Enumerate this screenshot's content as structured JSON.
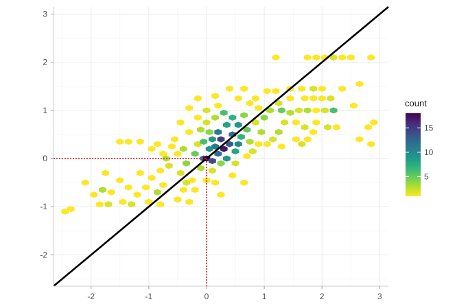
{
  "chart_data": {
    "type": "hexbin",
    "xlim": [
      -2.65,
      3.15
    ],
    "ylim": [
      -2.65,
      3.15
    ],
    "x_ticks": [
      -2,
      -1,
      0,
      1,
      2,
      3
    ],
    "y_ticks": [
      -2,
      -1,
      0,
      1,
      2,
      3
    ],
    "grid": true,
    "xlabel": "",
    "ylabel": "",
    "reference_line": {
      "intercept": 0,
      "slope": 1,
      "color": "#000000"
    },
    "crosshair": {
      "x": 0,
      "y": 0,
      "color": "#e41a1c",
      "style": "dotted"
    },
    "legend": {
      "title": "count",
      "placement": "right",
      "ticks": [
        5,
        10,
        15
      ],
      "range": [
        1,
        18
      ],
      "colormap": "viridis"
    },
    "bins": [
      {
        "x": -2.45,
        "y": -1.1,
        "count": 1
      },
      {
        "x": -2.35,
        "y": -1.05,
        "count": 1
      },
      {
        "x": -2.1,
        "y": -0.5,
        "count": 1
      },
      {
        "x": -1.95,
        "y": -0.75,
        "count": 1
      },
      {
        "x": -1.85,
        "y": -0.95,
        "count": 1
      },
      {
        "x": -1.8,
        "y": -0.65,
        "count": 3
      },
      {
        "x": -1.7,
        "y": -0.95,
        "count": 2
      },
      {
        "x": -1.65,
        "y": -0.7,
        "count": 1
      },
      {
        "x": -1.75,
        "y": -0.3,
        "count": 1
      },
      {
        "x": -1.5,
        "y": -0.45,
        "count": 1
      },
      {
        "x": -1.45,
        "y": -0.9,
        "count": 1
      },
      {
        "x": -1.35,
        "y": -0.6,
        "count": 1
      },
      {
        "x": -1.3,
        "y": -0.95,
        "count": 2
      },
      {
        "x": -1.2,
        "y": -0.75,
        "count": 1
      },
      {
        "x": -1.15,
        "y": -0.3,
        "count": 1
      },
      {
        "x": -1.05,
        "y": -0.6,
        "count": 1
      },
      {
        "x": -1.0,
        "y": -0.9,
        "count": 1
      },
      {
        "x": -0.95,
        "y": -0.4,
        "count": 1
      },
      {
        "x": -0.85,
        "y": -0.7,
        "count": 3
      },
      {
        "x": -0.8,
        "y": -0.25,
        "count": 1
      },
      {
        "x": -0.75,
        "y": -0.55,
        "count": 1
      },
      {
        "x": -0.8,
        "y": -0.95,
        "count": 1
      },
      {
        "x": -1.5,
        "y": 0.35,
        "count": 1
      },
      {
        "x": -1.35,
        "y": 0.35,
        "count": 1
      },
      {
        "x": -1.15,
        "y": 0.35,
        "count": 1
      },
      {
        "x": -0.95,
        "y": 0.2,
        "count": 1
      },
      {
        "x": -0.85,
        "y": 0.3,
        "count": 1
      },
      {
        "x": -0.75,
        "y": 0.1,
        "count": 1
      },
      {
        "x": -0.7,
        "y": 0.0,
        "count": 3
      },
      {
        "x": -0.65,
        "y": -0.15,
        "count": 2
      },
      {
        "x": -0.6,
        "y": 0.25,
        "count": 1
      },
      {
        "x": -0.55,
        "y": 0.4,
        "count": 1
      },
      {
        "x": -0.5,
        "y": 0.1,
        "count": 1
      },
      {
        "x": -0.45,
        "y": -0.3,
        "count": 2
      },
      {
        "x": -0.4,
        "y": 0.2,
        "count": 3
      },
      {
        "x": -0.35,
        "y": -0.1,
        "count": 4
      },
      {
        "x": -0.3,
        "y": 0.55,
        "count": 1
      },
      {
        "x": -0.25,
        "y": -0.45,
        "count": 1
      },
      {
        "x": -0.2,
        "y": 0.1,
        "count": 5
      },
      {
        "x": -0.15,
        "y": 0.3,
        "count": 2
      },
      {
        "x": -0.1,
        "y": -0.2,
        "count": 3
      },
      {
        "x": -0.05,
        "y": 0.0,
        "count": 12
      },
      {
        "x": 0.0,
        "y": 0.0,
        "count": 18
      },
      {
        "x": 0.05,
        "y": 0.2,
        "count": 9
      },
      {
        "x": 0.1,
        "y": -0.05,
        "count": 14
      },
      {
        "x": 0.15,
        "y": 0.25,
        "count": 11
      },
      {
        "x": -0.5,
        "y": -0.85,
        "count": 1
      },
      {
        "x": -0.4,
        "y": -0.65,
        "count": 1
      },
      {
        "x": -0.3,
        "y": -0.9,
        "count": 1
      },
      {
        "x": -0.2,
        "y": -0.65,
        "count": 1
      },
      {
        "x": -0.35,
        "y": -0.5,
        "count": 2
      },
      {
        "x": 0.0,
        "y": -0.45,
        "count": 1
      },
      {
        "x": 0.1,
        "y": -0.25,
        "count": 2
      },
      {
        "x": 0.15,
        "y": -0.5,
        "count": 1
      },
      {
        "x": 0.25,
        "y": -0.75,
        "count": 1
      },
      {
        "x": 0.45,
        "y": -0.35,
        "count": 1
      },
      {
        "x": 0.65,
        "y": -0.5,
        "count": 1
      },
      {
        "x": 0.5,
        "y": -0.1,
        "count": 2
      },
      {
        "x": 0.25,
        "y": -0.1,
        "count": 4
      },
      {
        "x": 0.35,
        "y": 0.0,
        "count": 9
      },
      {
        "x": 0.2,
        "y": 0.1,
        "count": 12
      },
      {
        "x": 0.3,
        "y": 0.2,
        "count": 17
      },
      {
        "x": 0.4,
        "y": 0.3,
        "count": 13
      },
      {
        "x": 0.25,
        "y": 0.4,
        "count": 15
      },
      {
        "x": 0.45,
        "y": 0.5,
        "count": 12
      },
      {
        "x": 0.55,
        "y": 0.3,
        "count": 10
      },
      {
        "x": 0.5,
        "y": 0.15,
        "count": 8
      },
      {
        "x": 0.6,
        "y": 0.45,
        "count": 7
      },
      {
        "x": 0.7,
        "y": 0.6,
        "count": 5
      },
      {
        "x": 0.35,
        "y": 0.7,
        "count": 8
      },
      {
        "x": 0.2,
        "y": 0.55,
        "count": 11
      },
      {
        "x": 0.1,
        "y": 0.4,
        "count": 9
      },
      {
        "x": 0.05,
        "y": 0.55,
        "count": 4
      },
      {
        "x": -0.05,
        "y": 0.35,
        "count": 6
      },
      {
        "x": -0.1,
        "y": 0.6,
        "count": 3
      },
      {
        "x": 0.0,
        "y": 0.75,
        "count": 2
      },
      {
        "x": 0.15,
        "y": 0.85,
        "count": 3
      },
      {
        "x": 0.3,
        "y": 0.95,
        "count": 6
      },
      {
        "x": 0.45,
        "y": 0.85,
        "count": 7
      },
      {
        "x": 0.55,
        "y": 0.7,
        "count": 9
      },
      {
        "x": 0.65,
        "y": 0.9,
        "count": 4
      },
      {
        "x": 0.75,
        "y": 0.35,
        "count": 3
      },
      {
        "x": 0.8,
        "y": 0.15,
        "count": 2
      },
      {
        "x": 0.7,
        "y": 0.05,
        "count": 1
      },
      {
        "x": 0.9,
        "y": 0.3,
        "count": 1
      },
      {
        "x": 0.95,
        "y": 0.55,
        "count": 3
      },
      {
        "x": 0.85,
        "y": 0.75,
        "count": 2
      },
      {
        "x": 1.0,
        "y": 0.85,
        "count": 4
      },
      {
        "x": 1.05,
        "y": 0.3,
        "count": 1
      },
      {
        "x": 1.15,
        "y": 0.4,
        "count": 2
      },
      {
        "x": 1.25,
        "y": 0.55,
        "count": 3
      },
      {
        "x": 1.35,
        "y": 0.75,
        "count": 2
      },
      {
        "x": 1.45,
        "y": 0.95,
        "count": 3
      },
      {
        "x": 1.3,
        "y": 0.25,
        "count": 1
      },
      {
        "x": 1.55,
        "y": 0.4,
        "count": 1
      },
      {
        "x": 1.65,
        "y": 0.3,
        "count": 2
      },
      {
        "x": 1.75,
        "y": 0.4,
        "count": 1
      },
      {
        "x": 1.85,
        "y": 0.55,
        "count": 1
      },
      {
        "x": 1.55,
        "y": 0.75,
        "count": 1
      },
      {
        "x": 1.7,
        "y": 0.65,
        "count": 2
      },
      {
        "x": 1.9,
        "y": 0.75,
        "count": 1
      },
      {
        "x": 2.1,
        "y": 0.65,
        "count": 2
      },
      {
        "x": 2.25,
        "y": 0.65,
        "count": 1
      },
      {
        "x": 1.6,
        "y": 1.0,
        "count": 2
      },
      {
        "x": 1.75,
        "y": 1.0,
        "count": 3
      },
      {
        "x": 1.9,
        "y": 1.0,
        "count": 1
      },
      {
        "x": 2.05,
        "y": 1.0,
        "count": 2
      },
      {
        "x": 2.2,
        "y": 1.0,
        "count": 6
      },
      {
        "x": 2.0,
        "y": 1.25,
        "count": 1
      },
      {
        "x": 2.15,
        "y": 1.25,
        "count": 2
      },
      {
        "x": 1.85,
        "y": 1.25,
        "count": 1
      },
      {
        "x": 1.7,
        "y": 1.25,
        "count": 1
      },
      {
        "x": 1.45,
        "y": 1.25,
        "count": 1
      },
      {
        "x": 1.25,
        "y": 1.15,
        "count": 2
      },
      {
        "x": 1.1,
        "y": 1.0,
        "count": 3
      },
      {
        "x": 1.3,
        "y": 1.0,
        "count": 5
      },
      {
        "x": 1.2,
        "y": 1.4,
        "count": 1
      },
      {
        "x": 1.05,
        "y": 1.4,
        "count": 1
      },
      {
        "x": 1.45,
        "y": 1.45,
        "count": 1
      },
      {
        "x": 1.65,
        "y": 1.45,
        "count": 1
      },
      {
        "x": 1.85,
        "y": 1.45,
        "count": 2
      },
      {
        "x": 2.0,
        "y": 1.45,
        "count": 1
      },
      {
        "x": 2.35,
        "y": 1.45,
        "count": 1
      },
      {
        "x": 2.65,
        "y": 1.55,
        "count": 1
      },
      {
        "x": 0.4,
        "y": 1.45,
        "count": 1
      },
      {
        "x": 0.65,
        "y": 1.45,
        "count": 1
      },
      {
        "x": 0.55,
        "y": 1.25,
        "count": 1
      },
      {
        "x": 0.75,
        "y": 1.15,
        "count": 1
      },
      {
        "x": 0.85,
        "y": 1.25,
        "count": 1
      },
      {
        "x": 0.9,
        "y": 1.05,
        "count": 1
      },
      {
        "x": 0.2,
        "y": 1.1,
        "count": 1
      },
      {
        "x": 0.0,
        "y": 1.0,
        "count": 2
      },
      {
        "x": -0.15,
        "y": 0.85,
        "count": 1
      },
      {
        "x": -0.45,
        "y": 0.75,
        "count": 1
      },
      {
        "x": -0.3,
        "y": 1.05,
        "count": 1
      },
      {
        "x": -0.15,
        "y": 1.25,
        "count": 1
      },
      {
        "x": 0.15,
        "y": 1.3,
        "count": 1
      },
      {
        "x": 1.2,
        "y": 2.1,
        "count": 1
      },
      {
        "x": 1.75,
        "y": 2.1,
        "count": 1
      },
      {
        "x": 1.9,
        "y": 2.1,
        "count": 1
      },
      {
        "x": 2.05,
        "y": 2.1,
        "count": 1
      },
      {
        "x": 2.2,
        "y": 2.1,
        "count": 2
      },
      {
        "x": 2.35,
        "y": 2.1,
        "count": 1
      },
      {
        "x": 2.5,
        "y": 2.1,
        "count": 1
      },
      {
        "x": 2.85,
        "y": 2.1,
        "count": 1
      },
      {
        "x": 2.9,
        "y": 0.75,
        "count": 1
      },
      {
        "x": 2.8,
        "y": 0.65,
        "count": 1
      },
      {
        "x": 2.65,
        "y": 0.4,
        "count": 1
      },
      {
        "x": 2.85,
        "y": 0.3,
        "count": 1
      },
      {
        "x": 2.55,
        "y": 1.1,
        "count": 1
      }
    ]
  }
}
